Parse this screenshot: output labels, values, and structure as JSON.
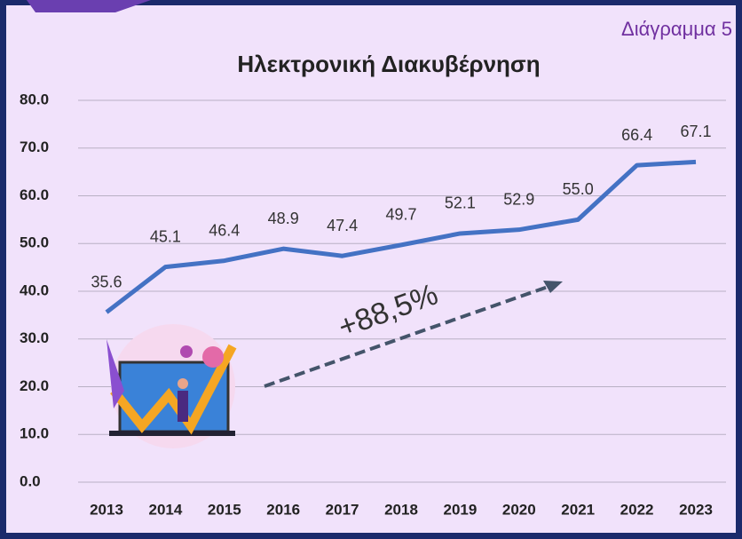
{
  "chart_data": {
    "type": "line",
    "title": "Ηλεκτρονική Διακυβέρνηση",
    "subtitle": "Διάγραμμα 5",
    "annotation": "+88,5%",
    "categories": [
      "2013",
      "2014",
      "2015",
      "2016",
      "2017",
      "2018",
      "2019",
      "2020",
      "2021",
      "2022",
      "2023"
    ],
    "series": [
      {
        "name": "Ηλεκτρονική Διακυβέρνηση",
        "color": "#4472c4",
        "values": [
          35.6,
          45.1,
          46.4,
          48.9,
          47.4,
          49.7,
          52.1,
          52.9,
          55.0,
          66.4,
          67.1
        ],
        "value_labels": [
          "35.6",
          "45.1",
          "46.4",
          "48.9",
          "47.4",
          "49.7",
          "52.1",
          "52.9",
          "55.0",
          "66.4",
          "67.1"
        ]
      }
    ],
    "ylim": [
      0,
      80
    ],
    "yticks": [
      {
        "value": 0,
        "label": "0.0"
      },
      {
        "value": 10,
        "label": "10.0"
      },
      {
        "value": 20,
        "label": "20.0"
      },
      {
        "value": 30,
        "label": "30.0"
      },
      {
        "value": 40,
        "label": "40.0"
      },
      {
        "value": 50,
        "label": "50.0"
      },
      {
        "value": 60,
        "label": "60.0"
      },
      {
        "value": 70,
        "label": "70.0"
      },
      {
        "value": 80,
        "label": "80.0"
      }
    ],
    "grid": true
  }
}
